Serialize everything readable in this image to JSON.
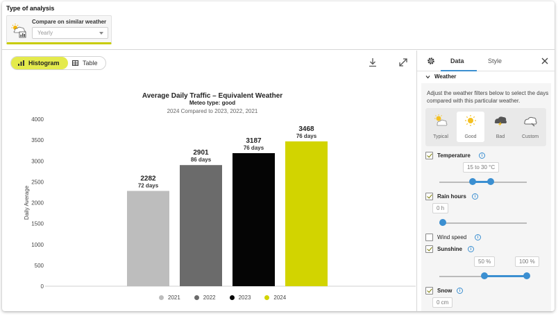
{
  "analysis": {
    "section_title": "Type of analysis",
    "card_label": "Compare on similar weather",
    "select_value": "Yearly"
  },
  "toolbar": {
    "histogram_label": "Histogram",
    "table_label": "Table",
    "active_tab": "Histogram"
  },
  "chart_data": {
    "type": "bar",
    "title": "Average Daily Traffic – Equivalent Weather",
    "subtitle": "Meteo type: good",
    "caption": "2024 Compared to 2023, 2022, 2021",
    "ylabel": "Daily Average",
    "ylim": [
      0,
      4000
    ],
    "yticks": [
      "0",
      "500",
      "1000",
      "1500",
      "2000",
      "2500",
      "3000",
      "3500",
      "4000"
    ],
    "categories": [
      "2021",
      "2022",
      "2023",
      "2024"
    ],
    "values": [
      2282,
      2901,
      3187,
      3468
    ],
    "days_labels": [
      "72 days",
      "86 days",
      "76 days",
      "76 days"
    ],
    "colors": [
      "#bdbdbd",
      "#6b6b6b",
      "#050505",
      "#d2d400"
    ],
    "legend": [
      "2021",
      "2022",
      "2023",
      "2024"
    ],
    "legend_position": "bottom",
    "grid": false
  },
  "panel": {
    "tab_data": "Data",
    "tab_style": "Style",
    "section": "Weather",
    "description": "Adjust the weather filters below to select the days compared with this particular weather.",
    "weather_types": [
      {
        "label": "Typical",
        "icon": "sun-cloud-icon",
        "active": false
      },
      {
        "label": "Good",
        "icon": "sun-icon",
        "active": true
      },
      {
        "label": "Bad",
        "icon": "storm-cloud-icon",
        "active": false
      },
      {
        "label": "Custom",
        "icon": "custom-cloud-icon",
        "active": false
      }
    ],
    "filters": {
      "temperature": {
        "label": "Temperature",
        "checked": true,
        "value": "15 to 30 °C"
      },
      "rain": {
        "label": "Rain hours",
        "checked": true,
        "value": "0 h"
      },
      "wind": {
        "label": "Wind speed",
        "checked": false
      },
      "sunshine": {
        "label": "Sunshine",
        "checked": true,
        "min": "50 %",
        "max": "100 %"
      },
      "snow": {
        "label": "Snow",
        "checked": true,
        "value": "0 cm"
      }
    }
  }
}
